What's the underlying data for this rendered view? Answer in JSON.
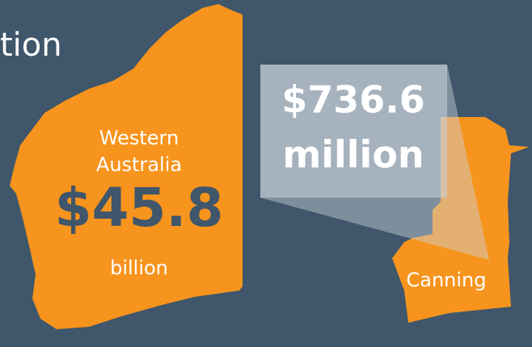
{
  "heading_fragment": "tion",
  "region": {
    "name_lines": [
      "Western",
      "Australia"
    ],
    "value": "$45.8",
    "unit": "billion"
  },
  "callout": {
    "value": "$736.6",
    "unit": "million",
    "area": "Canning"
  }
}
